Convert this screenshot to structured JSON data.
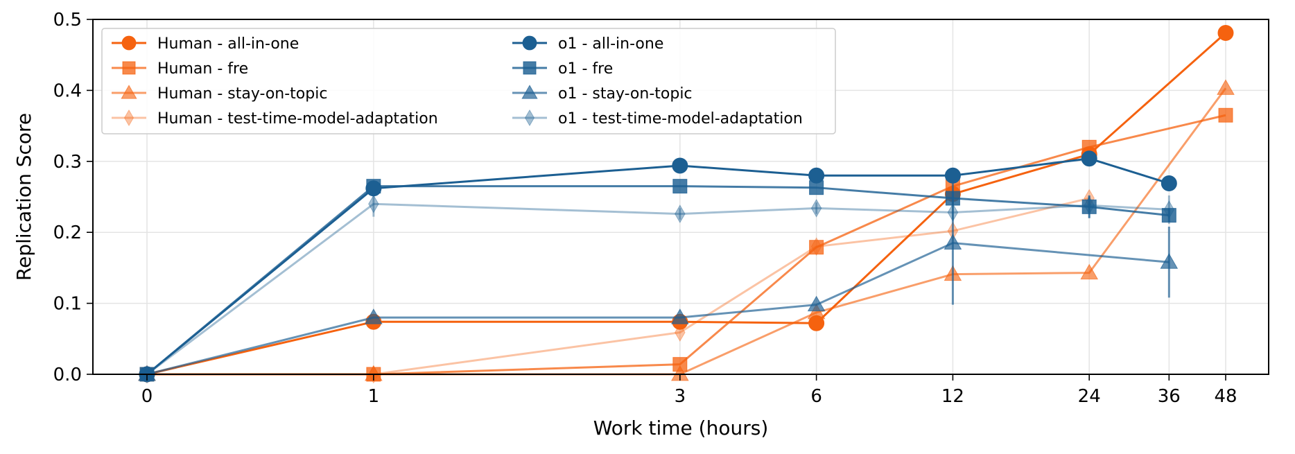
{
  "chart_data": {
    "type": "line",
    "title": "",
    "xlabel": "Work time (hours)",
    "ylabel": "Replication Score",
    "x_ticks": [
      0,
      1,
      3,
      6,
      12,
      24,
      36,
      48
    ],
    "y_ticks": [
      "0.0",
      "0.1",
      "0.2",
      "0.3",
      "0.4",
      "0.5"
    ],
    "ylim": [
      0,
      0.5
    ],
    "x_scale": "symlog",
    "grid": true,
    "legend": "top-left, two columns",
    "series": [
      {
        "name": "Human - all-in-one",
        "color": "#f5620f",
        "marker": "circle",
        "opacity": 1.0,
        "x": [
          0,
          1,
          3,
          6,
          12,
          24,
          48
        ],
        "y": [
          0.0,
          0.074,
          0.074,
          0.072,
          0.254,
          0.31,
          0.481
        ],
        "err": [
          0,
          0,
          0,
          0,
          0,
          0,
          0
        ]
      },
      {
        "name": "Human - fre",
        "color": "#f5620f",
        "marker": "square",
        "opacity": 0.75,
        "x": [
          0,
          1,
          3,
          6,
          12,
          24,
          48
        ],
        "y": [
          0.0,
          0.0,
          0.014,
          0.179,
          0.265,
          0.32,
          0.365
        ],
        "err": [
          0,
          0,
          0,
          0,
          0,
          0,
          0
        ]
      },
      {
        "name": "Human - stay-on-topic",
        "color": "#f5620f",
        "marker": "triangle",
        "opacity": 0.62,
        "x": [
          0,
          1,
          3,
          6,
          12,
          24,
          48
        ],
        "y": [
          0.0,
          0.0,
          0.0,
          0.087,
          0.141,
          0.143,
          0.403
        ],
        "err": [
          0,
          0,
          0,
          0,
          0,
          0,
          0
        ]
      },
      {
        "name": "Human - test-time-model-adaptation",
        "color": "#f5620f",
        "marker": "diamond",
        "opacity": 0.38,
        "x": [
          0,
          1,
          3,
          6,
          12,
          24
        ],
        "y": [
          0.0,
          0.0,
          0.059,
          0.18,
          0.202,
          0.248
        ],
        "err": [
          0,
          0,
          0,
          0,
          0,
          0
        ]
      },
      {
        "name": "o1  - all-in-one",
        "color": "#1c5f92",
        "marker": "circle",
        "opacity": 1.0,
        "x": [
          0,
          1,
          3,
          6,
          12,
          24,
          36
        ],
        "y": [
          0.0,
          0.262,
          0.294,
          0.28,
          0.28,
          0.304,
          0.269
        ],
        "err": [
          0,
          0,
          0,
          0,
          0,
          0,
          0
        ]
      },
      {
        "name": "o1  - fre",
        "color": "#1c5f92",
        "marker": "square",
        "opacity": 0.82,
        "x": [
          0,
          1,
          3,
          6,
          12,
          24,
          36
        ],
        "y": [
          0.0,
          0.265,
          0.265,
          0.263,
          0.248,
          0.236,
          0.224
        ],
        "err": [
          0,
          0,
          0,
          0,
          0.01,
          0.016,
          0.01
        ]
      },
      {
        "name": "o1  - stay-on-topic",
        "color": "#1c5f92",
        "marker": "triangle",
        "opacity": 0.68,
        "x": [
          0,
          1,
          3,
          6,
          12,
          36
        ],
        "y": [
          0.0,
          0.08,
          0.08,
          0.098,
          0.185,
          0.158
        ],
        "err": [
          0,
          0,
          0,
          0,
          0.087,
          0.05
        ]
      },
      {
        "name": "o1  - test-time-model-adaptation",
        "color": "#1c5f92",
        "marker": "diamond",
        "opacity": 0.4,
        "x": [
          0,
          1,
          3,
          6,
          12,
          24,
          36
        ],
        "y": [
          0.0,
          0.24,
          0.226,
          0.234,
          0.228,
          0.238,
          0.232
        ],
        "err": [
          0,
          0.018,
          0.008,
          0.008,
          0.01,
          0.012,
          0.02
        ]
      }
    ]
  }
}
